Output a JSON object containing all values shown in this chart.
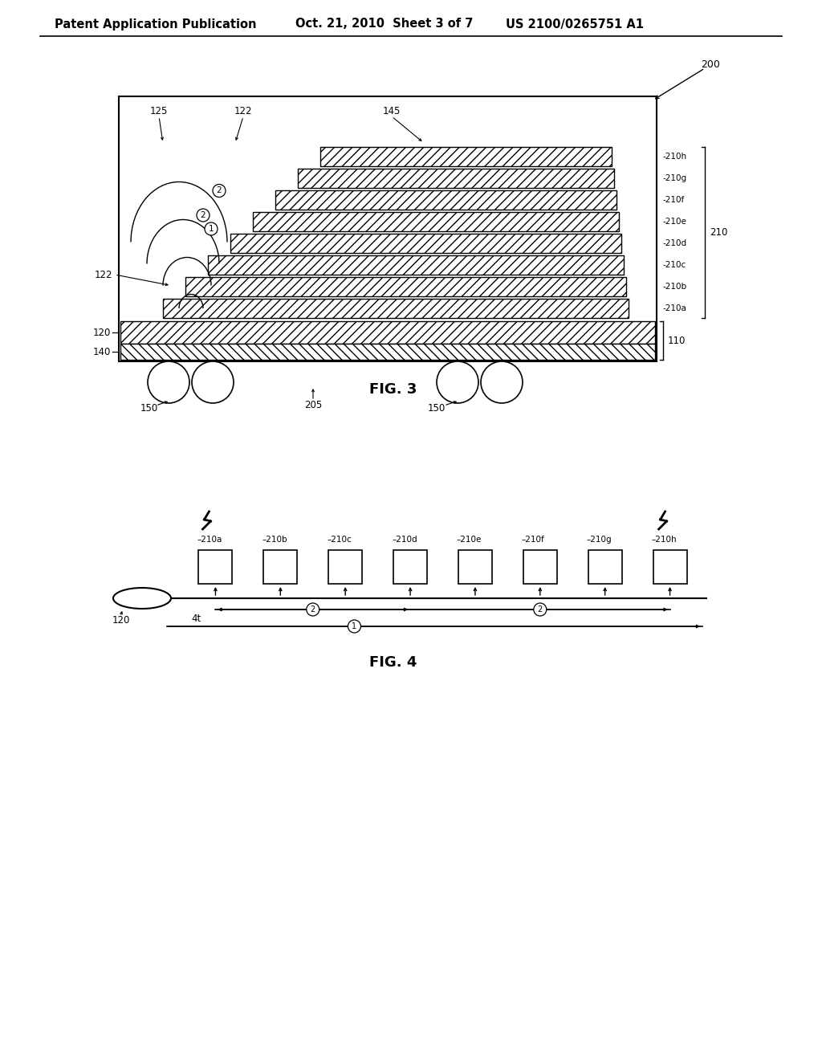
{
  "header_left": "Patent Application Publication",
  "header_mid": "Oct. 21, 2010  Sheet 3 of 7",
  "header_right": "US 2100/0265751 A1",
  "fig3_label": "FIG. 3",
  "fig4_label": "FIG. 4",
  "bg_color": "#ffffff"
}
